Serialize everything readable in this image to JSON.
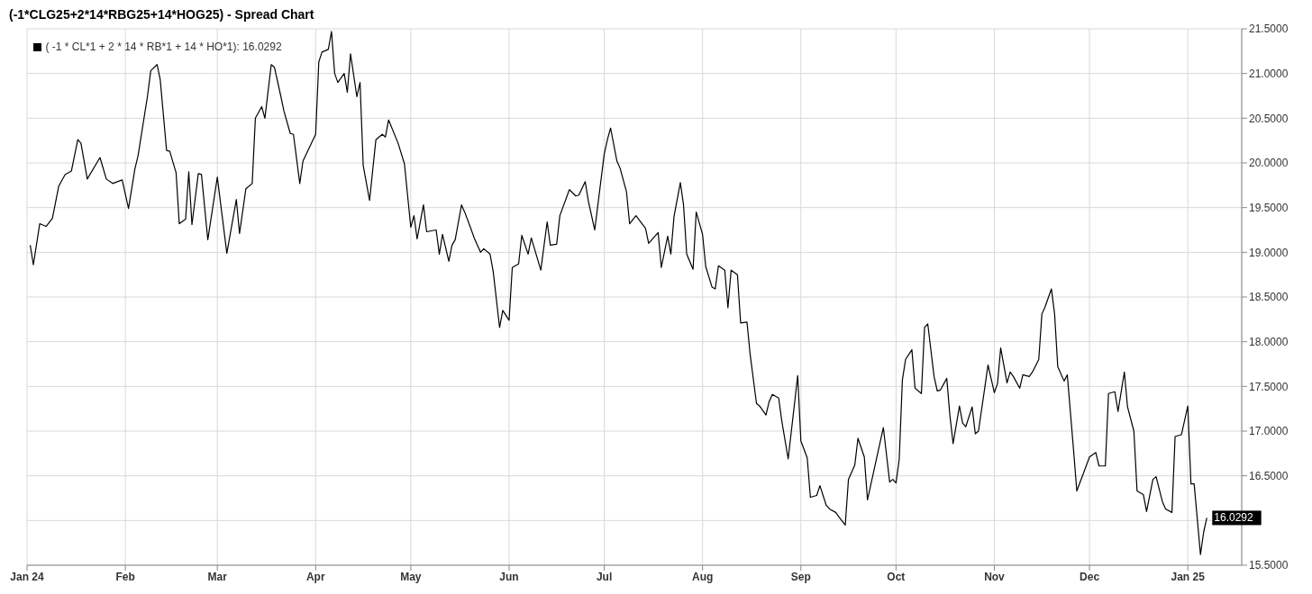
{
  "chart_data": {
    "type": "line",
    "title": "(-1*CLG25+2*14*RBG25+14*HOG25) - Spread Chart",
    "x": [
      "2024-01-02",
      "2024-01-03",
      "2024-01-05",
      "2024-01-07",
      "2024-01-09",
      "2024-01-11",
      "2024-01-13",
      "2024-01-15",
      "2024-01-17",
      "2024-01-18",
      "2024-01-20",
      "2024-01-24",
      "2024-01-26",
      "2024-01-28",
      "2024-01-31",
      "2024-02-02",
      "2024-02-04",
      "2024-02-05",
      "2024-02-08",
      "2024-02-09",
      "2024-02-11",
      "2024-02-12",
      "2024-02-14",
      "2024-02-15",
      "2024-02-17",
      "2024-02-18",
      "2024-02-20",
      "2024-02-21",
      "2024-02-22",
      "2024-02-24",
      "2024-02-25",
      "2024-02-27",
      "2024-03-01",
      "2024-03-04",
      "2024-03-07",
      "2024-03-08",
      "2024-03-10",
      "2024-03-12",
      "2024-03-13",
      "2024-03-15",
      "2024-03-16",
      "2024-03-18",
      "2024-03-19",
      "2024-03-21",
      "2024-03-22",
      "2024-03-24",
      "2024-03-25",
      "2024-03-27",
      "2024-03-28",
      "2024-04-01",
      "2024-04-02",
      "2024-04-03",
      "2024-04-05",
      "2024-04-06",
      "2024-04-07",
      "2024-04-08",
      "2024-04-10",
      "2024-04-11",
      "2024-04-12",
      "2024-04-14",
      "2024-04-15",
      "2024-04-16",
      "2024-04-18",
      "2024-04-20",
      "2024-04-22",
      "2024-04-23",
      "2024-04-24",
      "2024-04-27",
      "2024-04-29",
      "2024-05-01",
      "2024-05-02",
      "2024-05-03",
      "2024-05-05",
      "2024-05-06",
      "2024-05-09",
      "2024-05-10",
      "2024-05-11",
      "2024-05-13",
      "2024-05-14",
      "2024-05-15",
      "2024-05-17",
      "2024-05-18",
      "2024-05-20",
      "2024-05-21",
      "2024-05-23",
      "2024-05-24",
      "2024-05-26",
      "2024-05-27",
      "2024-05-29",
      "2024-05-30",
      "2024-06-01",
      "2024-06-02",
      "2024-06-04",
      "2024-06-05",
      "2024-06-07",
      "2024-06-08",
      "2024-06-11",
      "2024-06-13",
      "2024-06-14",
      "2024-06-16",
      "2024-06-17",
      "2024-06-20",
      "2024-06-22",
      "2024-06-23",
      "2024-06-25",
      "2024-06-26",
      "2024-06-28",
      "2024-07-01",
      "2024-07-02",
      "2024-07-03",
      "2024-07-05",
      "2024-07-06",
      "2024-07-08",
      "2024-07-09",
      "2024-07-11",
      "2024-07-14",
      "2024-07-15",
      "2024-07-17",
      "2024-07-18",
      "2024-07-19",
      "2024-07-21",
      "2024-07-22",
      "2024-07-23",
      "2024-07-25",
      "2024-07-26",
      "2024-07-27",
      "2024-07-29",
      "2024-07-30",
      "2024-08-01",
      "2024-08-02",
      "2024-08-04",
      "2024-08-05",
      "2024-08-06",
      "2024-08-08",
      "2024-08-09",
      "2024-08-10",
      "2024-08-12",
      "2024-08-13",
      "2024-08-15",
      "2024-08-16",
      "2024-08-18",
      "2024-08-19",
      "2024-08-21",
      "2024-08-22",
      "2024-08-23",
      "2024-08-25",
      "2024-08-26",
      "2024-08-28",
      "2024-08-31",
      "2024-09-01",
      "2024-09-03",
      "2024-09-04",
      "2024-09-06",
      "2024-09-07",
      "2024-09-09",
      "2024-09-10",
      "2024-09-12",
      "2024-09-13",
      "2024-09-15",
      "2024-09-16",
      "2024-09-18",
      "2024-09-19",
      "2024-09-21",
      "2024-09-22",
      "2024-09-27",
      "2024-09-29",
      "2024-09-30",
      "2024-10-01",
      "2024-10-02",
      "2024-10-03",
      "2024-10-04",
      "2024-10-06",
      "2024-10-07",
      "2024-10-09",
      "2024-10-10",
      "2024-10-11",
      "2024-10-13",
      "2024-10-14",
      "2024-10-15",
      "2024-10-17",
      "2024-10-18",
      "2024-10-19",
      "2024-10-21",
      "2024-10-22",
      "2024-10-23",
      "2024-10-25",
      "2024-10-26",
      "2024-10-27",
      "2024-10-29",
      "2024-10-30",
      "2024-11-01",
      "2024-11-02",
      "2024-11-03",
      "2024-11-05",
      "2024-11-06",
      "2024-11-07",
      "2024-11-09",
      "2024-11-10",
      "2024-11-12",
      "2024-11-13",
      "2024-11-15",
      "2024-11-16",
      "2024-11-17",
      "2024-11-19",
      "2024-11-20",
      "2024-11-21",
      "2024-11-23",
      "2024-11-24",
      "2024-11-26",
      "2024-11-27",
      "2024-11-29",
      "2024-12-01",
      "2024-12-03",
      "2024-12-04",
      "2024-12-06",
      "2024-12-07",
      "2024-12-09",
      "2024-12-10",
      "2024-12-12",
      "2024-12-13",
      "2024-12-15",
      "2024-12-16",
      "2024-12-18",
      "2024-12-19",
      "2024-12-21",
      "2024-12-22",
      "2024-12-24",
      "2024-12-25",
      "2024-12-27",
      "2024-12-28",
      "2024-12-30",
      "2025-01-01",
      "2025-01-02",
      "2025-01-03",
      "2025-01-05",
      "2025-01-06",
      "2025-01-07"
    ],
    "series": [
      {
        "name": "( -1 * CL*1 + 2 * 14 * RB*1 + 14 * HO*1): 16.0292",
        "color": "#000000",
        "values": [
          19.08,
          18.86,
          19.32,
          19.29,
          19.38,
          19.74,
          19.87,
          19.91,
          20.26,
          20.22,
          19.82,
          20.06,
          19.82,
          19.77,
          19.81,
          19.49,
          19.93,
          20.08,
          20.75,
          21.03,
          21.1,
          20.93,
          20.14,
          20.13,
          19.89,
          19.32,
          19.37,
          19.9,
          19.31,
          19.88,
          19.87,
          19.14,
          19.84,
          18.99,
          19.59,
          19.21,
          19.71,
          19.77,
          20.5,
          20.63,
          20.5,
          21.1,
          21.07,
          20.75,
          20.58,
          20.33,
          20.32,
          19.77,
          20.02,
          20.32,
          21.13,
          21.24,
          21.27,
          21.47,
          21.0,
          20.9,
          21.0,
          20.79,
          21.22,
          20.74,
          20.9,
          19.97,
          19.58,
          20.26,
          20.32,
          20.29,
          20.48,
          20.22,
          19.99,
          19.28,
          19.41,
          19.15,
          19.53,
          19.23,
          19.25,
          18.98,
          19.2,
          18.9,
          19.08,
          19.14,
          19.53,
          19.45,
          19.26,
          19.16,
          19.0,
          19.04,
          18.98,
          18.78,
          18.16,
          18.35,
          18.24,
          18.83,
          18.87,
          19.19,
          18.98,
          19.16,
          18.8,
          19.34,
          19.08,
          19.09,
          19.41,
          19.7,
          19.63,
          19.64,
          19.79,
          19.57,
          19.25,
          20.1,
          20.26,
          20.39,
          20.02,
          19.94,
          19.68,
          19.32,
          19.41,
          19.27,
          19.1,
          19.18,
          19.22,
          18.83,
          19.18,
          18.98,
          19.4,
          19.78,
          19.53,
          18.98,
          18.81,
          19.45,
          19.2,
          18.84,
          18.61,
          18.59,
          18.85,
          18.8,
          18.38,
          18.8,
          18.75,
          18.21,
          18.22,
          17.86,
          17.31,
          17.28,
          17.18,
          17.33,
          17.41,
          17.37,
          17.11,
          16.69,
          17.62,
          16.89,
          16.7,
          16.26,
          16.28,
          16.39,
          16.17,
          16.13,
          16.09,
          16.04,
          15.95,
          16.46,
          16.62,
          16.92,
          16.71,
          16.23,
          17.04,
          16.43,
          16.46,
          16.42,
          16.68,
          17.57,
          17.8,
          17.91,
          17.48,
          17.42,
          18.16,
          18.2,
          17.61,
          17.45,
          17.46,
          17.59,
          17.17,
          16.86,
          17.28,
          17.09,
          17.05,
          17.27,
          16.97,
          17.0,
          17.49,
          17.74,
          17.43,
          17.53,
          17.93,
          17.54,
          17.66,
          17.61,
          17.48,
          17.63,
          17.61,
          17.66,
          17.8,
          18.31,
          18.39,
          18.59,
          18.31,
          17.72,
          17.56,
          17.63,
          16.78,
          16.33,
          16.52,
          16.71,
          16.76,
          16.61,
          16.61,
          17.42,
          17.44,
          17.22,
          17.66,
          17.27,
          17.0,
          16.33,
          16.29,
          16.1,
          16.46,
          16.49,
          16.21,
          16.13,
          16.09,
          16.94,
          16.96,
          17.28,
          16.41,
          16.41,
          15.62,
          15.87,
          16.0292
        ],
        "value_labels": [
          null,
          null,
          null,
          null,
          null,
          null,
          null,
          null,
          null,
          null,
          null,
          null,
          null,
          null,
          null,
          null,
          null,
          null,
          null,
          null,
          null,
          null,
          null,
          null,
          null,
          null,
          null,
          null,
          null,
          null,
          null,
          null,
          null,
          null,
          null,
          null,
          null,
          null,
          null,
          null,
          null,
          null,
          null,
          null,
          null,
          null,
          null,
          null,
          null,
          null,
          null,
          null,
          null,
          null,
          null,
          null,
          null,
          null,
          null,
          null,
          null,
          null,
          null,
          null,
          null,
          null,
          null,
          null,
          null,
          null,
          null,
          null,
          null,
          null,
          null,
          null,
          null,
          null,
          null,
          null,
          null,
          null,
          null,
          null,
          null,
          null,
          null,
          null,
          null,
          null,
          null,
          null,
          null,
          null,
          null,
          null,
          null,
          null,
          null,
          null,
          null,
          null,
          null,
          null,
          null,
          null,
          null,
          null,
          null,
          null,
          null,
          null,
          null,
          null,
          null,
          null,
          null,
          null,
          null,
          null,
          null,
          null,
          null,
          null,
          null,
          null,
          null,
          null,
          null,
          null,
          null,
          null,
          null,
          null,
          null,
          null,
          null,
          null,
          null,
          null,
          null,
          null,
          null,
          null,
          null,
          null,
          null,
          null,
          null,
          null,
          null,
          null,
          null,
          null,
          null,
          null,
          null,
          null,
          null,
          null,
          null,
          null,
          null,
          null,
          null,
          null,
          null,
          null,
          null,
          null,
          null,
          null,
          null,
          null,
          null,
          null,
          null,
          null,
          null,
          null,
          null,
          null,
          null,
          null,
          null,
          null,
          null,
          null,
          null,
          null,
          null,
          null,
          null,
          null,
          null,
          null,
          null,
          null,
          null,
          null,
          null,
          null,
          null,
          null,
          null,
          null,
          null,
          null,
          null,
          null,
          null,
          null,
          null,
          null,
          null,
          null,
          null,
          null,
          null,
          null,
          null,
          null,
          null,
          null,
          null,
          null,
          null,
          null,
          null,
          null,
          null,
          null,
          null,
          null,
          null,
          null,
          "16.0292"
        ]
      }
    ],
    "xlim": [
      "2024-01-01",
      "2025-01-18"
    ],
    "xticks": [
      {
        "value": "2024-01-01",
        "label": "Jan 24"
      },
      {
        "value": "2024-02-01",
        "label": "Feb"
      },
      {
        "value": "2024-03-01",
        "label": "Mar"
      },
      {
        "value": "2024-04-01",
        "label": "Apr"
      },
      {
        "value": "2024-05-01",
        "label": "May"
      },
      {
        "value": "2024-06-01",
        "label": "Jun"
      },
      {
        "value": "2024-07-01",
        "label": "Jul"
      },
      {
        "value": "2024-08-01",
        "label": "Aug"
      },
      {
        "value": "2024-09-01",
        "label": "Sep"
      },
      {
        "value": "2024-10-01",
        "label": "Oct"
      },
      {
        "value": "2024-11-01",
        "label": "Nov"
      },
      {
        "value": "2024-12-01",
        "label": "Dec"
      },
      {
        "value": "2025-01-01",
        "label": "Jan 25"
      }
    ],
    "ylim": [
      15.5,
      21.5
    ],
    "yticks": [
      {
        "value": 15.5,
        "label": "15.5000"
      },
      {
        "value": 16,
        "label": null
      },
      {
        "value": 16.5,
        "label": "16.5000"
      },
      {
        "value": 17,
        "label": "17.0000"
      },
      {
        "value": 17.5,
        "label": "17.5000"
      },
      {
        "value": 18,
        "label": "18.0000"
      },
      {
        "value": 18.5,
        "label": "18.5000"
      },
      {
        "value": 19,
        "label": "19.0000"
      },
      {
        "value": 19.5,
        "label": "19.5000"
      },
      {
        "value": 20,
        "label": "20.0000"
      },
      {
        "value": 20.5,
        "label": "20.5000"
      },
      {
        "value": 21,
        "label": "21.0000"
      },
      {
        "value": 21.5,
        "label": "21.5000"
      }
    ],
    "grid": true,
    "legend": "top left",
    "marker": "none",
    "line_style": "solid"
  }
}
